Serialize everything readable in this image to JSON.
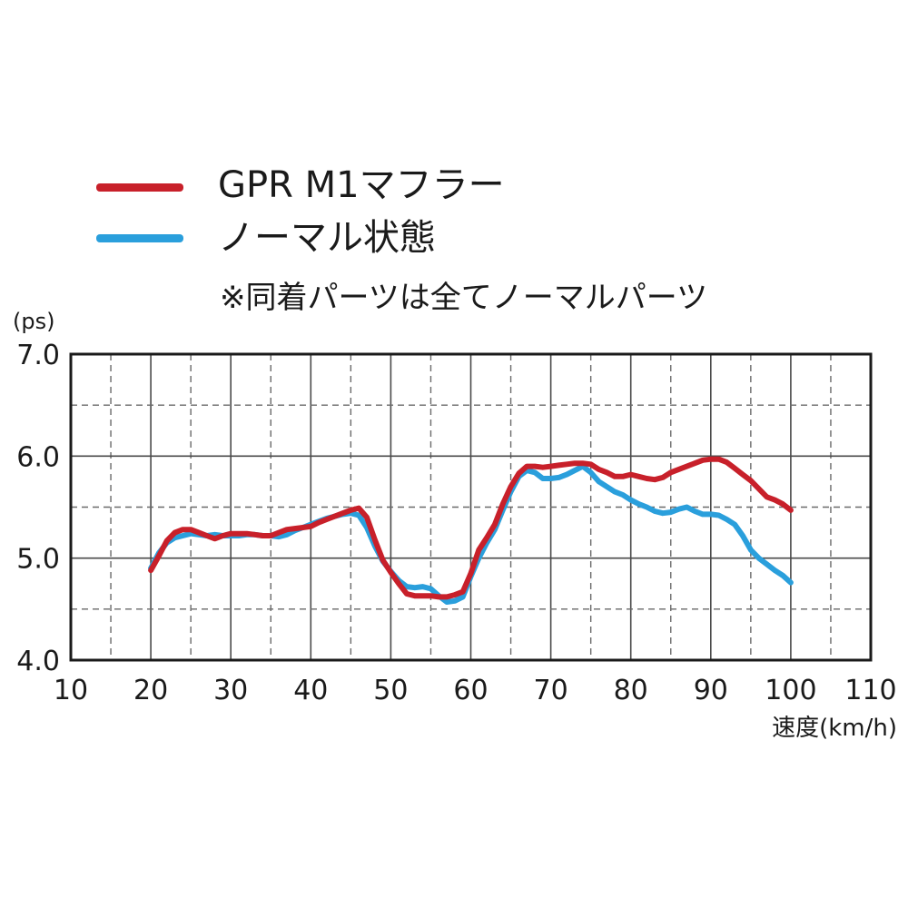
{
  "legend": [
    {
      "label": "GPR M1マフラー",
      "color": "#c8202a"
    },
    {
      "label": "ノーマル状態",
      "color": "#2a9fdc"
    }
  ],
  "note": "※同着パーツは全てノーマルパーツ",
  "chart_data": {
    "type": "line",
    "ylabel": "(ps)",
    "xlabel": "速度(km/h)",
    "xlim": [
      10,
      110
    ],
    "ylim": [
      4.0,
      7.0
    ],
    "xticks": [
      "10",
      "20",
      "30",
      "40",
      "50",
      "60",
      "70",
      "80",
      "90",
      "100",
      "110"
    ],
    "yticks": [
      "4.0",
      "5.0",
      "6.0",
      "7.0"
    ],
    "grid": true,
    "legend_position": "top-left",
    "series": [
      {
        "name": "GPR M1マフラー",
        "color": "#c8202a",
        "x": [
          20,
          21,
          22,
          23,
          24,
          25,
          26,
          27,
          28,
          29,
          30,
          31,
          32,
          33,
          34,
          35,
          36,
          37,
          38,
          39,
          40,
          41,
          42,
          43,
          44,
          45,
          46,
          47,
          48,
          49,
          50,
          51,
          52,
          53,
          54,
          55,
          56,
          57,
          58,
          59,
          60,
          61,
          62,
          63,
          64,
          65,
          66,
          67,
          68,
          69,
          70,
          71,
          72,
          73,
          74,
          75,
          76,
          77,
          78,
          79,
          80,
          81,
          82,
          83,
          84,
          85,
          86,
          87,
          88,
          89,
          90,
          91,
          92,
          93,
          94,
          95,
          96,
          97,
          98,
          99,
          100
        ],
        "values": [
          4.88,
          5.02,
          5.17,
          5.25,
          5.28,
          5.28,
          5.25,
          5.22,
          5.19,
          5.22,
          5.24,
          5.24,
          5.24,
          5.23,
          5.22,
          5.22,
          5.25,
          5.28,
          5.29,
          5.3,
          5.31,
          5.35,
          5.38,
          5.41,
          5.44,
          5.47,
          5.49,
          5.4,
          5.18,
          4.98,
          4.86,
          4.75,
          4.65,
          4.63,
          4.63,
          4.63,
          4.62,
          4.62,
          4.64,
          4.67,
          4.85,
          5.08,
          5.2,
          5.33,
          5.53,
          5.7,
          5.83,
          5.9,
          5.9,
          5.89,
          5.9,
          5.91,
          5.92,
          5.93,
          5.93,
          5.92,
          5.87,
          5.84,
          5.8,
          5.8,
          5.82,
          5.8,
          5.78,
          5.77,
          5.79,
          5.84,
          5.87,
          5.9,
          5.93,
          5.96,
          5.97,
          5.97,
          5.94,
          5.88,
          5.82,
          5.76,
          5.68,
          5.6,
          5.57,
          5.53,
          5.47
        ]
      },
      {
        "name": "ノーマル状態",
        "color": "#2a9fdc",
        "x": [
          20,
          21,
          22,
          23,
          24,
          25,
          26,
          27,
          28,
          29,
          30,
          31,
          32,
          33,
          34,
          35,
          36,
          37,
          38,
          39,
          40,
          41,
          42,
          43,
          44,
          45,
          46,
          47,
          48,
          49,
          50,
          51,
          52,
          53,
          54,
          55,
          56,
          57,
          58,
          59,
          60,
          61,
          62,
          63,
          64,
          65,
          66,
          67,
          68,
          69,
          70,
          71,
          72,
          73,
          74,
          75,
          76,
          77,
          78,
          79,
          80,
          81,
          82,
          83,
          84,
          85,
          86,
          87,
          88,
          89,
          90,
          91,
          92,
          93,
          94,
          95,
          96,
          97,
          98,
          99,
          100
        ],
        "values": [
          4.9,
          5.05,
          5.15,
          5.2,
          5.22,
          5.24,
          5.23,
          5.22,
          5.23,
          5.22,
          5.22,
          5.22,
          5.23,
          5.23,
          5.22,
          5.22,
          5.21,
          5.23,
          5.27,
          5.3,
          5.33,
          5.36,
          5.39,
          5.41,
          5.43,
          5.44,
          5.42,
          5.3,
          5.12,
          4.97,
          4.87,
          4.78,
          4.72,
          4.71,
          4.72,
          4.7,
          4.63,
          4.57,
          4.58,
          4.62,
          4.82,
          5.0,
          5.15,
          5.28,
          5.47,
          5.65,
          5.8,
          5.86,
          5.84,
          5.78,
          5.78,
          5.79,
          5.82,
          5.86,
          5.9,
          5.84,
          5.75,
          5.7,
          5.65,
          5.62,
          5.57,
          5.53,
          5.5,
          5.46,
          5.44,
          5.45,
          5.48,
          5.5,
          5.46,
          5.43,
          5.43,
          5.42,
          5.38,
          5.33,
          5.22,
          5.08,
          5.0,
          4.94,
          4.88,
          4.83,
          4.76
        ]
      }
    ]
  }
}
